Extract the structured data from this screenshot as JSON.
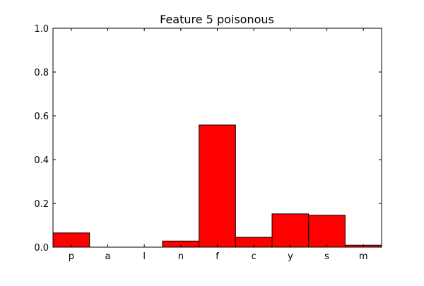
{
  "chart_data": {
    "type": "bar",
    "title": "Feature 5 poisonous",
    "xlabel": "",
    "ylabel": "",
    "categories": [
      "p",
      "a",
      "l",
      "n",
      "f",
      "c",
      "y",
      "s",
      "m"
    ],
    "values": [
      0.065,
      0.0,
      0.0,
      0.028,
      0.558,
      0.045,
      0.152,
      0.146,
      0.009
    ],
    "ylim": [
      0,
      1.0
    ],
    "yticks": [
      0.0,
      0.2,
      0.4,
      0.6,
      0.8,
      1.0
    ],
    "ytick_labels": [
      "0.0",
      "0.2",
      "0.4",
      "0.6",
      "0.8",
      "1.0"
    ],
    "grid": false,
    "legend": "none",
    "colors": {
      "bar_fill": "#ff0000",
      "bar_edge": "#000000",
      "axis": "#000000",
      "background": "#ffffff"
    }
  }
}
